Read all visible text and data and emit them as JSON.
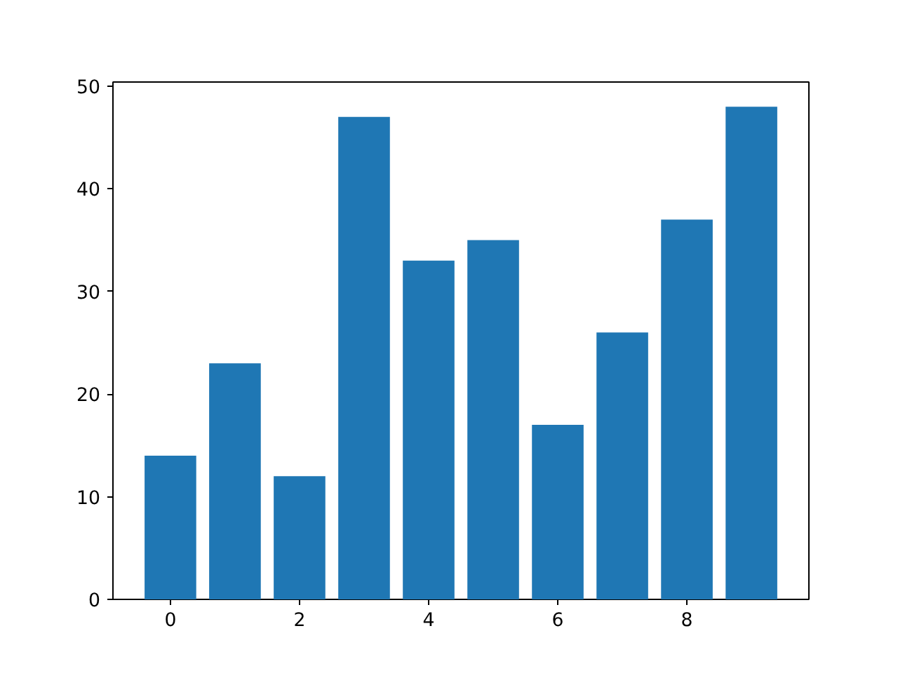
{
  "chart_data": {
    "type": "bar",
    "x": [
      0,
      1,
      2,
      3,
      4,
      5,
      6,
      7,
      8,
      9
    ],
    "values": [
      14,
      23,
      12,
      47,
      33,
      35,
      17,
      26,
      37,
      48
    ],
    "color": "#1f77b4",
    "xlim": [
      -0.89,
      9.89
    ],
    "xticks": [
      0,
      2,
      4,
      6,
      8
    ],
    "ylim": [
      0,
      50.4
    ],
    "yticks": [
      0,
      10,
      20,
      30,
      40,
      50
    ],
    "grid": false
  }
}
